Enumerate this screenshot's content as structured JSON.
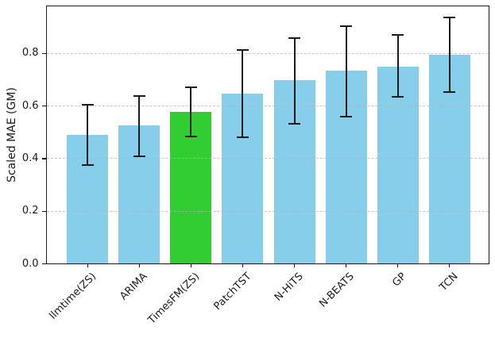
{
  "chart_data": {
    "type": "bar",
    "title": "",
    "xlabel": "",
    "ylabel": "Scaled MAE (GM)",
    "categories": [
      "llmtime(ZS)",
      "ARIMA",
      "TimesFM(ZS)",
      "PatchTST",
      "N-HiTS",
      "N-BEATS",
      "GP",
      "TCN"
    ],
    "values": [
      0.49,
      0.525,
      0.578,
      0.648,
      0.698,
      0.734,
      0.75,
      0.795
    ],
    "error_low": [
      0.375,
      0.41,
      0.483,
      0.482,
      0.531,
      0.56,
      0.635,
      0.654
    ],
    "error_high": [
      0.605,
      0.638,
      0.67,
      0.812,
      0.858,
      0.905,
      0.87,
      0.938
    ],
    "bar_colors": [
      "#87CEEB",
      "#87CEEB",
      "#32CD32",
      "#87CEEB",
      "#87CEEB",
      "#87CEEB",
      "#87CEEB",
      "#87CEEB"
    ],
    "highlight_index": 2,
    "highlight_color": "#32CD32",
    "default_bar_color": "#87CEEB",
    "error_bar_color": "#1c1c1c",
    "spine_color": "#1a1a1a",
    "grid_color": "#b4b4b4",
    "grid_style": "dashed horizontal, drawn over bars",
    "legend": "none",
    "yticks": [
      0.0,
      0.2,
      0.4,
      0.6,
      0.8
    ],
    "ytick_labels": [
      "0.0",
      "0.2",
      "0.4",
      "0.6",
      "0.8"
    ],
    "ylim": [
      0,
      0.982
    ],
    "x_label_rotation_deg": 45
  }
}
